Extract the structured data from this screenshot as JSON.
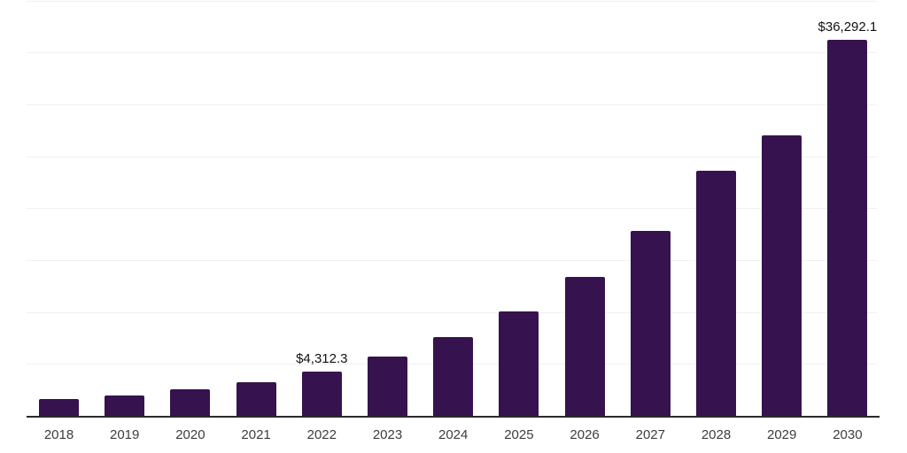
{
  "chart_data": {
    "type": "bar",
    "title": "",
    "xlabel": "",
    "ylabel": "",
    "categories": [
      "2018",
      "2019",
      "2020",
      "2021",
      "2022",
      "2023",
      "2024",
      "2025",
      "2026",
      "2027",
      "2028",
      "2029",
      "2030"
    ],
    "values": [
      1700,
      2040,
      2570,
      3310,
      4312.3,
      5750,
      7630,
      10110,
      13430,
      17860,
      23650,
      27090,
      36292.1
    ],
    "annotations": [
      {
        "category": "2022",
        "text": "$4,312.3"
      },
      {
        "category": "2030",
        "text": "$36,292.1"
      }
    ],
    "ylim": [
      0,
      40000
    ],
    "gridline_step": 5000,
    "grid": "horizontal-only",
    "legend": "none",
    "y_axis_tick_labels_visible": false,
    "colors": {
      "bar": "#36124e",
      "gridline": "#f1f1f1",
      "axis_line": "#2a2a2a",
      "tick_label": "#3d3d3d",
      "value_label": "#111111",
      "background": "#ffffff"
    }
  }
}
